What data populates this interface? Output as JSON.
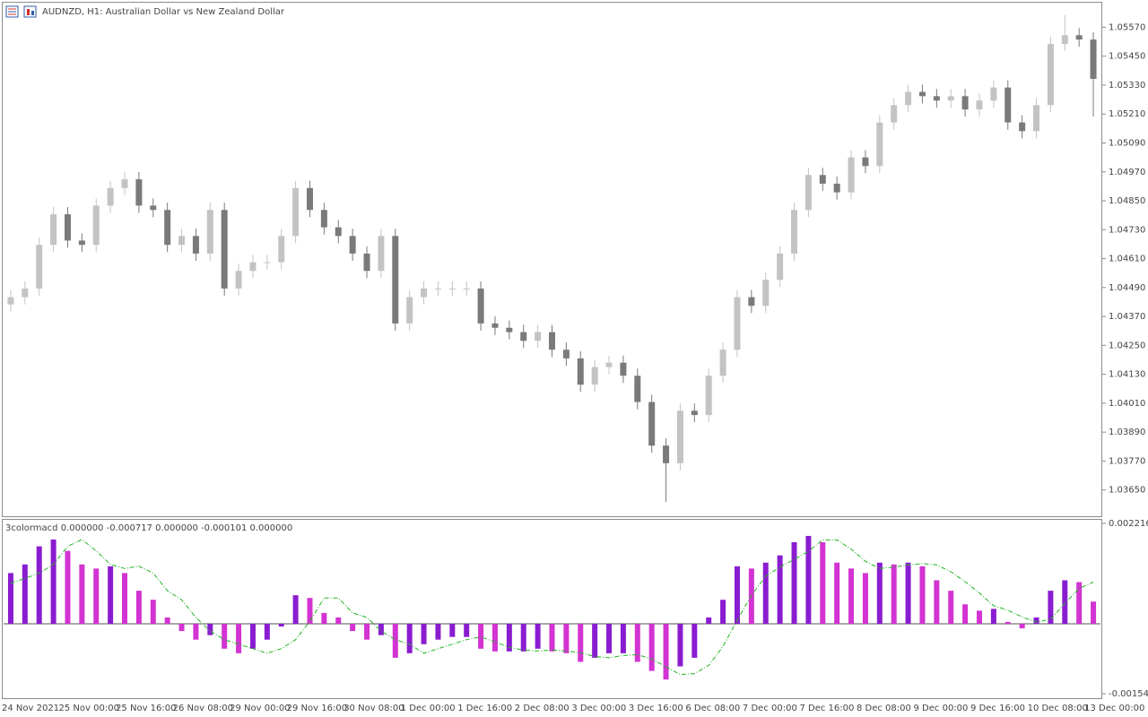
{
  "chart_data": [
    {
      "type": "candlestick",
      "title": "AUDNZD, H1:  Australian Dollar vs New Zealand Dollar",
      "up_color": "#c3c3c3",
      "down_color": "#7a7a7a",
      "ylim": [
        1.03541,
        1.05672
      ],
      "yticks": [
        {
          "value": 1.0557,
          "label": "1.05570"
        },
        {
          "value": 1.0545,
          "label": "1.05450"
        },
        {
          "value": 1.0533,
          "label": "1.05330"
        },
        {
          "value": 1.0521,
          "label": "1.05210"
        },
        {
          "value": 1.0509,
          "label": "1.05090"
        },
        {
          "value": 1.0497,
          "label": "1.04970"
        },
        {
          "value": 1.0485,
          "label": "1.04850"
        },
        {
          "value": 1.0473,
          "label": "1.04730"
        },
        {
          "value": 1.0461,
          "label": "1.04610"
        },
        {
          "value": 1.0449,
          "label": "1.04490"
        },
        {
          "value": 1.0437,
          "label": "1.04370"
        },
        {
          "value": 1.0425,
          "label": "1.04250"
        },
        {
          "value": 1.0413,
          "label": "1.04130"
        },
        {
          "value": 1.0401,
          "label": "1.04010"
        },
        {
          "value": 1.0389,
          "label": "1.03890"
        },
        {
          "value": 1.0377,
          "label": "1.03770"
        },
        {
          "value": 1.0365,
          "label": "1.03650"
        }
      ],
      "categories": [
        "24 Nov 2021",
        null,
        null,
        null,
        "25 Nov 00:00",
        null,
        null,
        null,
        "25 Nov 16:00",
        null,
        null,
        null,
        "26 Nov 08:00",
        null,
        null,
        null,
        "29 Nov 00:00",
        null,
        null,
        null,
        "29 Nov 16:00",
        null,
        null,
        null,
        "30 Nov 08:00",
        null,
        null,
        null,
        "1 Dec 00:00",
        null,
        null,
        null,
        "1 Dec 16:00",
        null,
        null,
        null,
        "2 Dec 08:00",
        null,
        null,
        null,
        "3 Dec 00:00",
        null,
        null,
        null,
        "3 Dec 16:00",
        null,
        null,
        null,
        "6 Dec 08:00",
        null,
        null,
        null,
        "7 Dec 00:00",
        null,
        null,
        null,
        "7 Dec 16:00",
        null,
        null,
        null,
        "8 Dec 08:00",
        null,
        null,
        null,
        "9 Dec 00:00",
        null,
        null,
        null,
        "9 Dec 16:00",
        null,
        null,
        null,
        "10 Dec 08:00",
        null,
        null,
        null,
        "13 Dec 00:00"
      ],
      "open": [
        1.0442,
        1.0445,
        1.04486,
        1.04667,
        1.04794,
        1.04685,
        1.04667,
        1.0483,
        1.04903,
        1.04939,
        1.0483,
        1.04812,
        1.04667,
        1.04704,
        1.04631,
        1.04812,
        1.04486,
        1.04559,
        1.04595,
        1.04595,
        1.04704,
        1.04903,
        1.04812,
        1.0474,
        1.04704,
        1.04631,
        1.04559,
        1.04704,
        1.04341,
        1.0445,
        1.04486,
        1.04486,
        1.04486,
        1.04486,
        1.04341,
        1.04323,
        1.04305,
        1.04269,
        1.04305,
        1.04232,
        1.04196,
        1.04087,
        1.0416,
        1.04178,
        1.04124,
        1.04015,
        1.03834,
        1.03761,
        1.03979,
        1.03961,
        1.04124,
        1.04232,
        1.0445,
        1.04414,
        1.04522,
        1.04631,
        1.04812,
        1.04957,
        1.04921,
        1.04885,
        1.0503,
        1.04994,
        1.05175,
        1.05247,
        1.05302,
        1.05284,
        1.05266,
        1.05284,
        1.05229,
        1.05266,
        1.0532,
        1.05175,
        1.05139,
        1.05247,
        1.05501,
        1.05537,
        1.05519
      ],
      "high": [
        1.0448,
        1.04516,
        1.04697,
        1.04824,
        1.04824,
        1.04715,
        1.0486,
        1.04933,
        1.04969,
        1.04969,
        1.0486,
        1.04842,
        1.04734,
        1.04734,
        1.04842,
        1.04842,
        1.04589,
        1.04625,
        1.04625,
        1.04734,
        1.04933,
        1.04933,
        1.04842,
        1.0477,
        1.04734,
        1.04661,
        1.04734,
        1.04734,
        1.0448,
        1.04516,
        1.04516,
        1.04516,
        1.04516,
        1.04516,
        1.04371,
        1.04353,
        1.04335,
        1.04335,
        1.04335,
        1.04262,
        1.04226,
        1.0419,
        1.04208,
        1.04208,
        1.04154,
        1.04045,
        1.03864,
        1.04009,
        1.04009,
        1.04154,
        1.04262,
        1.0448,
        1.0448,
        1.04552,
        1.04661,
        1.04842,
        1.04987,
        1.04987,
        1.04951,
        1.0506,
        1.0506,
        1.05205,
        1.05277,
        1.05332,
        1.05332,
        1.05314,
        1.05314,
        1.05314,
        1.05296,
        1.0535,
        1.0535,
        1.05205,
        1.05277,
        1.05531,
        1.0562,
        1.05567,
        1.05549
      ],
      "low": [
        1.0439,
        1.0442,
        1.04456,
        1.04637,
        1.04655,
        1.04637,
        1.04637,
        1.048,
        1.04873,
        1.048,
        1.04782,
        1.04637,
        1.04637,
        1.04601,
        1.04601,
        1.04456,
        1.04456,
        1.04529,
        1.04565,
        1.04565,
        1.04674,
        1.04782,
        1.0471,
        1.04674,
        1.04601,
        1.04529,
        1.04529,
        1.04311,
        1.04311,
        1.0442,
        1.04456,
        1.04456,
        1.04456,
        1.04311,
        1.04293,
        1.04275,
        1.04239,
        1.04239,
        1.04202,
        1.04166,
        1.04057,
        1.04057,
        1.0413,
        1.04094,
        1.03985,
        1.03804,
        1.036,
        1.03731,
        1.03931,
        1.03931,
        1.04094,
        1.04202,
        1.04384,
        1.04384,
        1.04492,
        1.04601,
        1.04782,
        1.04891,
        1.04855,
        1.04855,
        1.04964,
        1.04964,
        1.05145,
        1.05217,
        1.05254,
        1.05236,
        1.05236,
        1.05199,
        1.05199,
        1.05236,
        1.05145,
        1.05109,
        1.05109,
        1.05217,
        1.05471,
        1.05489,
        1.052
      ],
      "close": [
        1.0445,
        1.04486,
        1.04667,
        1.04794,
        1.04685,
        1.04667,
        1.0483,
        1.04903,
        1.04939,
        1.0483,
        1.04812,
        1.04667,
        1.04704,
        1.04631,
        1.04812,
        1.04486,
        1.04559,
        1.04595,
        1.04595,
        1.04704,
        1.04903,
        1.04812,
        1.0474,
        1.04704,
        1.04631,
        1.04559,
        1.04704,
        1.04341,
        1.0445,
        1.04486,
        1.04486,
        1.04486,
        1.04486,
        1.04341,
        1.04323,
        1.04305,
        1.04269,
        1.04305,
        1.04232,
        1.04196,
        1.04087,
        1.0416,
        1.04178,
        1.04124,
        1.04015,
        1.03834,
        1.03761,
        1.03979,
        1.03961,
        1.04124,
        1.04232,
        1.0445,
        1.04414,
        1.04522,
        1.04631,
        1.04812,
        1.04957,
        1.04921,
        1.04885,
        1.0503,
        1.04994,
        1.05175,
        1.05247,
        1.05302,
        1.05284,
        1.05266,
        1.05284,
        1.05229,
        1.05266,
        1.0532,
        1.05175,
        1.05139,
        1.05247,
        1.05501,
        1.05537,
        1.05519,
        1.05356
      ]
    },
    {
      "type": "macd",
      "title": "3colormacd 0.000000 -0.000717 0.000000 -0.000101 0.000000",
      "up_color": "#8a1cd0",
      "down_color": "#d233d2",
      "signal_color": "#22b322",
      "ylim": [
        -0.001543,
        0.002216
      ],
      "yticks": [
        0.002216,
        -0.001543
      ],
      "values": [
        0.00112,
        0.00131,
        0.00171,
        0.00186,
        0.00161,
        0.00131,
        0.00122,
        0.00127,
        0.00112,
        0.00073,
        0.00053,
        0.00014,
        -0.00016,
        -0.00035,
        -0.00025,
        -0.00055,
        -0.00065,
        -0.00055,
        -0.00035,
        -6e-05,
        0.00063,
        0.00057,
        0.00024,
        0.00014,
        -0.00016,
        -0.00035,
        -0.00025,
        -0.00075,
        -0.00065,
        -0.00045,
        -0.00035,
        -0.00029,
        -0.00029,
        -0.00055,
        -0.00061,
        -0.00061,
        -0.00061,
        -0.00055,
        -0.00061,
        -0.00065,
        -0.00084,
        -0.00075,
        -0.00065,
        -0.00065,
        -0.00084,
        -0.00104,
        -0.00123,
        -0.00094,
        -0.00075,
        0.00014,
        0.00053,
        0.00127,
        0.00122,
        0.00135,
        0.00151,
        0.0018,
        0.00194,
        0.0018,
        0.00135,
        0.00122,
        0.00112,
        0.00135,
        0.00131,
        0.00135,
        0.00127,
        0.00096,
        0.00073,
        0.00043,
        0.00029,
        0.00033,
        4e-05,
        -0.0001,
        0.00014,
        0.00073,
        0.00096,
        0.00092,
        0.00049
      ],
      "signal": [
        0.0009,
        0.001,
        0.00112,
        0.00131,
        0.00171,
        0.00186,
        0.00161,
        0.00131,
        0.00122,
        0.00127,
        0.00112,
        0.00073,
        0.00053,
        0.00014,
        -0.00016,
        -0.00035,
        -0.00045,
        -0.00055,
        -0.00065,
        -0.00055,
        -0.00035,
        6e-05,
        0.00057,
        0.00057,
        0.00024,
        0.00014,
        -0.00016,
        -0.00035,
        -0.00045,
        -0.00065,
        -0.00055,
        -0.00045,
        -0.00035,
        -0.00029,
        -0.0004,
        -0.00052,
        -0.00058,
        -0.0006,
        -0.00058,
        -0.0006,
        -0.00064,
        -0.00072,
        -0.00075,
        -0.0007,
        -0.00068,
        -0.00078,
        -0.00095,
        -0.00112,
        -0.0011,
        -0.00092,
        -0.0005,
        8e-05,
        0.00063,
        0.00105,
        0.00125,
        0.00142,
        0.0016,
        0.00185,
        0.00185,
        0.00165,
        0.00138,
        0.00122,
        0.00125,
        0.0013,
        0.00133,
        0.0013,
        0.00115,
        0.00093,
        0.00068,
        0.0004,
        0.0003,
        0.00015,
        4e-05,
        0.0001,
        0.00045,
        0.00078,
        0.00092
      ]
    }
  ]
}
